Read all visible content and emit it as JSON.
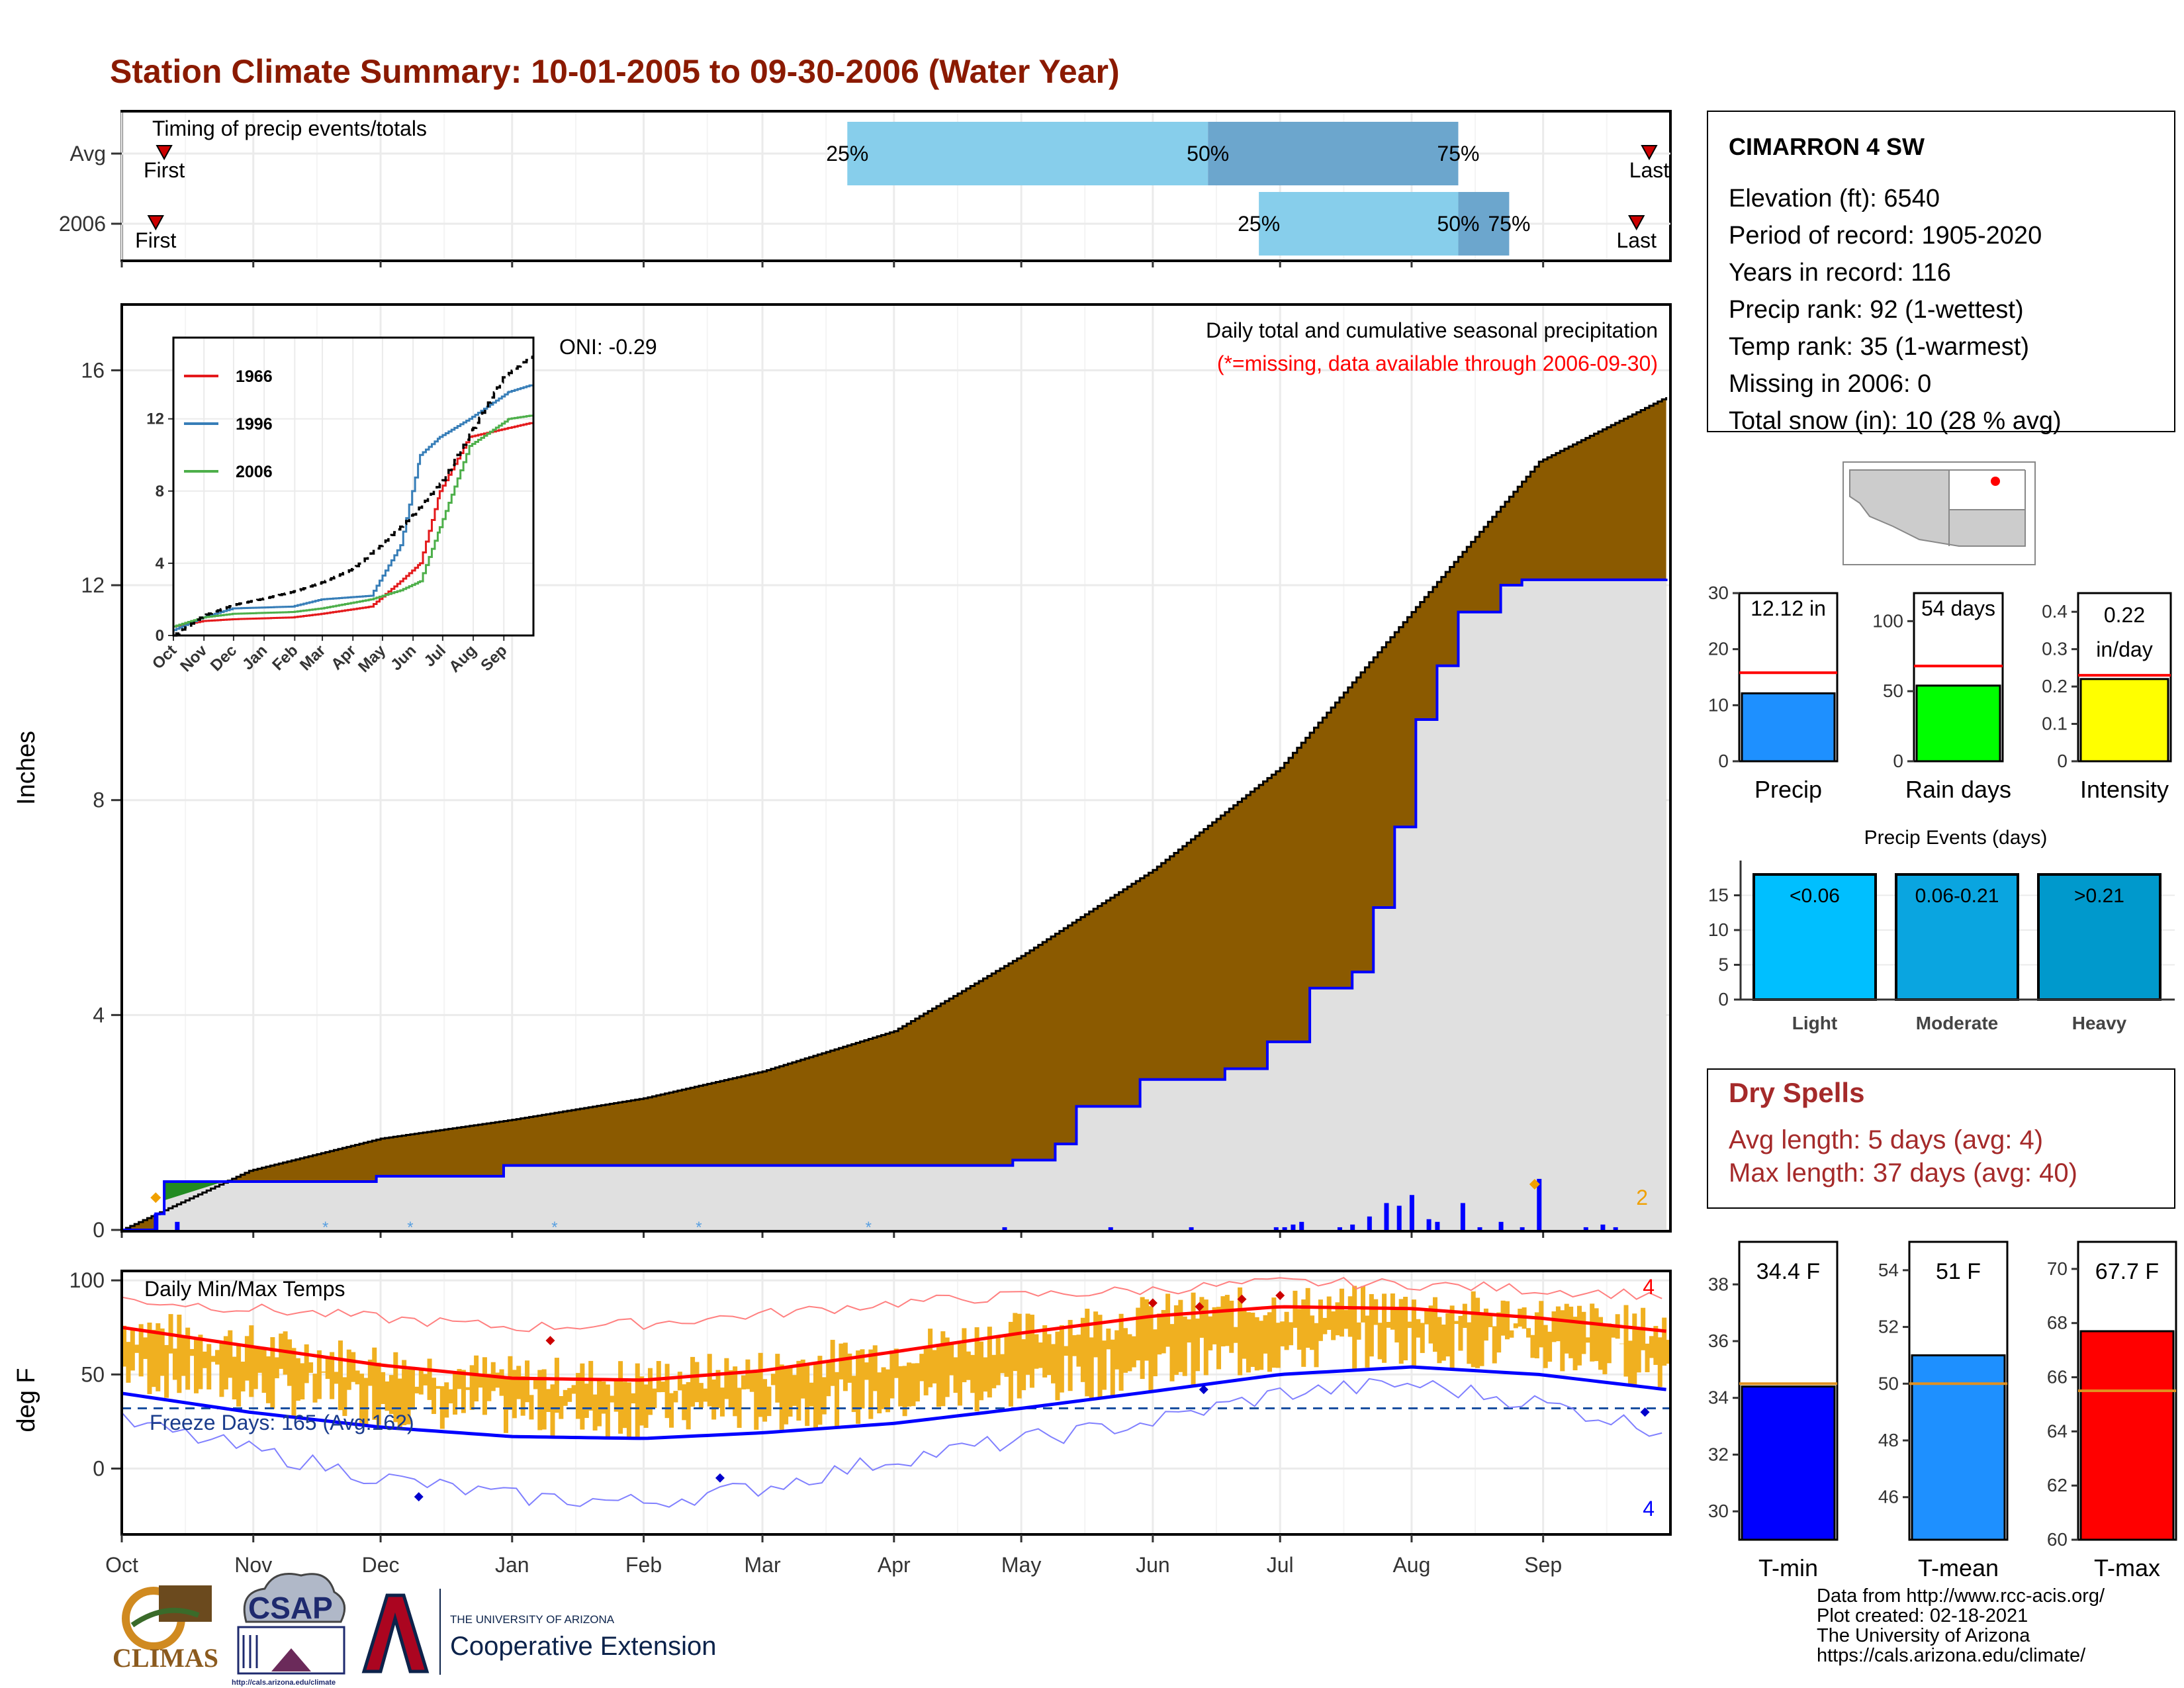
{
  "title": "Station Climate Summary: 10-01-2005 to 09-30-2006 (Water Year)",
  "colors": {
    "title": "#8B1A00",
    "brown": "#8B5A00",
    "gray": "#E0E0E0",
    "blue": "#0000FF",
    "orange": "#F0B020",
    "red": "#FF0000"
  },
  "months": [
    "Oct",
    "Nov",
    "Dec",
    "Jan",
    "Feb",
    "Mar",
    "Apr",
    "May",
    "Jun",
    "Jul",
    "Aug",
    "Sep"
  ],
  "timing": {
    "label": "Timing of precip events/totals",
    "rows": [
      {
        "name": "Avg",
        "first_label": "First",
        "last_label": "Last",
        "first_day": 10,
        "last_day": 360,
        "p25": 171,
        "p50": 256,
        "p75": 315,
        "l25": "25%",
        "l50": "50%",
        "l75": "75%"
      },
      {
        "name": "2006",
        "first_label": "First",
        "last_label": "Last",
        "first_day": 8,
        "last_day": 357,
        "p25": 268,
        "p50": 315,
        "p75": 327,
        "l25": "25%",
        "l50": "50%",
        "l75": "75%"
      }
    ]
  },
  "station": {
    "name": "CIMARRON 4 SW",
    "lines": [
      "Elevation (ft): 6540",
      "Period of record: 1905-2020",
      "Years in record: 116",
      "Precip rank: 92 (1-wettest)",
      "Temp rank: 35 (1-warmest)",
      "Missing in 2006: 0",
      "Total snow (in): 10 (28 % avg)"
    ]
  },
  "precip_chart": {
    "ylabel": "Inches",
    "yticks": [
      0,
      4,
      8,
      12,
      16
    ],
    "title": "Daily total and cumulative seasonal precipitation",
    "subtitle": "(*=missing, data available through 2006-09-30)",
    "oni": "ONI: -0.29",
    "count_label": "2"
  },
  "chart_data": [
    {
      "type": "area",
      "name": "cumulative precipitation",
      "x_unit": "day of water year",
      "avg_cumulative": [
        [
          0,
          0
        ],
        [
          30,
          1.1
        ],
        [
          61,
          1.7
        ],
        [
          92,
          2.05
        ],
        [
          123,
          2.45
        ],
        [
          151,
          2.95
        ],
        [
          182,
          3.7
        ],
        [
          212,
          5.1
        ],
        [
          243,
          6.7
        ],
        [
          273,
          8.6
        ],
        [
          304,
          11.5
        ],
        [
          334,
          14.3
        ],
        [
          364,
          15.5
        ]
      ],
      "cumulative_2006": [
        [
          0,
          0
        ],
        [
          8,
          0.3
        ],
        [
          10,
          0.9
        ],
        [
          30,
          0.9
        ],
        [
          60,
          1.0
        ],
        [
          90,
          1.2
        ],
        [
          150,
          1.2
        ],
        [
          180,
          1.2
        ],
        [
          210,
          1.3
        ],
        [
          220,
          1.6
        ],
        [
          225,
          2.3
        ],
        [
          240,
          2.8
        ],
        [
          260,
          3.0
        ],
        [
          270,
          3.5
        ],
        [
          280,
          4.5
        ],
        [
          290,
          4.8
        ],
        [
          295,
          6.0
        ],
        [
          300,
          7.5
        ],
        [
          305,
          9.5
        ],
        [
          310,
          10.5
        ],
        [
          315,
          11.5
        ],
        [
          325,
          12.0
        ],
        [
          330,
          12.1
        ],
        [
          364,
          12.12
        ]
      ],
      "daily_bars": [
        [
          8,
          0.3
        ],
        [
          13,
          0.15
        ],
        [
          208,
          0.05
        ],
        [
          233,
          0.05
        ],
        [
          252,
          0.05
        ],
        [
          272,
          0.05
        ],
        [
          274,
          0.05
        ],
        [
          276,
          0.1
        ],
        [
          278,
          0.15
        ],
        [
          287,
          0.05
        ],
        [
          290,
          0.1
        ],
        [
          294,
          0.25
        ],
        [
          298,
          0.5
        ],
        [
          301,
          0.45
        ],
        [
          304,
          0.65
        ],
        [
          308,
          0.2
        ],
        [
          310,
          0.15
        ],
        [
          316,
          0.5
        ],
        [
          320,
          0.05
        ],
        [
          325,
          0.15
        ],
        [
          330,
          0.05
        ],
        [
          334,
          0.95
        ],
        [
          345,
          0.05
        ],
        [
          349,
          0.1
        ],
        [
          352,
          0.05
        ]
      ]
    },
    {
      "type": "line",
      "name": "inset cumulative comparison",
      "yticks": [
        0,
        4,
        8,
        12
      ],
      "series": [
        {
          "name": "1966",
          "color": "#E41A1C",
          "points": [
            [
              0,
              0.5
            ],
            [
              30,
              0.8
            ],
            [
              60,
              0.9
            ],
            [
              120,
              1.0
            ],
            [
              150,
              1.2
            ],
            [
              200,
              1.6
            ],
            [
              230,
              3.0
            ],
            [
              250,
              4.0
            ],
            [
              270,
              8.0
            ],
            [
              300,
              11.0
            ],
            [
              340,
              11.5
            ],
            [
              364,
              11.8
            ]
          ]
        },
        {
          "name": "1996",
          "color": "#377EB8",
          "points": [
            [
              0,
              0.3
            ],
            [
              30,
              1.0
            ],
            [
              60,
              1.5
            ],
            [
              120,
              1.6
            ],
            [
              150,
              2.0
            ],
            [
              200,
              2.2
            ],
            [
              230,
              5.0
            ],
            [
              250,
              10.0
            ],
            [
              270,
              11.0
            ],
            [
              300,
              12.0
            ],
            [
              340,
              13.5
            ],
            [
              364,
              13.9
            ]
          ]
        },
        {
          "name": "2006",
          "color": "#4DAF4A",
          "points": [
            [
              0,
              0.5
            ],
            [
              30,
              1.0
            ],
            [
              60,
              1.2
            ],
            [
              120,
              1.3
            ],
            [
              150,
              1.5
            ],
            [
              200,
              2.0
            ],
            [
              230,
              2.5
            ],
            [
              250,
              3.0
            ],
            [
              270,
              6.0
            ],
            [
              300,
              10.5
            ],
            [
              340,
              12.0
            ],
            [
              364,
              12.2
            ]
          ]
        },
        {
          "name": "avg",
          "color": "#000000",
          "points": [
            [
              0,
              0
            ],
            [
              30,
              1.1
            ],
            [
              61,
              1.7
            ],
            [
              92,
              2.05
            ],
            [
              123,
              2.45
            ],
            [
              151,
              2.95
            ],
            [
              182,
              3.7
            ],
            [
              212,
              5.1
            ],
            [
              243,
              6.7
            ],
            [
              273,
              8.6
            ],
            [
              304,
              11.5
            ],
            [
              334,
              14.3
            ],
            [
              364,
              15.5
            ]
          ]
        }
      ]
    },
    {
      "type": "bar",
      "name": "Precip",
      "value": 12.12,
      "avg": 15.8,
      "label": "12.12 in",
      "yticks": [
        0,
        10,
        20,
        30
      ],
      "ylim": [
        0,
        30
      ],
      "color": "#1E90FF"
    },
    {
      "type": "bar",
      "name": "Rain days",
      "value": 54,
      "avg": 68,
      "label": "54 days",
      "yticks": [
        0,
        50,
        100
      ],
      "ylim": [
        0,
        120
      ],
      "color": "#00FF00"
    },
    {
      "type": "bar",
      "name": "Intensity",
      "value": 0.22,
      "avg": 0.23,
      "label_line1": "0.22",
      "label_line2": "in/day",
      "yticks": [
        0.0,
        0.1,
        0.2,
        0.3,
        0.4
      ],
      "ylim": [
        0,
        0.45
      ],
      "color": "#FFFF00"
    },
    {
      "type": "bar",
      "name": "Precip Events (days)",
      "categories": [
        "Light",
        "Moderate",
        "Heavy"
      ],
      "labels": [
        "<0.06",
        "0.06-0.21",
        ">0.21"
      ],
      "values": [
        18,
        18,
        18
      ],
      "colors": [
        "#00BFFF",
        "#0AA5E0",
        "#0099CC"
      ],
      "yticks": [
        0,
        5,
        10,
        15
      ],
      "ylim": [
        0,
        20
      ]
    },
    {
      "type": "line",
      "name": "Daily Min/Max Temps",
      "ylabel": "deg F",
      "yticks": [
        0,
        50,
        100
      ],
      "ylim": [
        -35,
        105
      ],
      "freeze_label": "Freeze Days: 165 (Avg:162)",
      "freeze_line": 32,
      "count_high": "4",
      "count_low": "4",
      "avg_max": [
        [
          0,
          75
        ],
        [
          30,
          65
        ],
        [
          61,
          55
        ],
        [
          92,
          48
        ],
        [
          123,
          47
        ],
        [
          151,
          52
        ],
        [
          182,
          62
        ],
        [
          212,
          72
        ],
        [
          243,
          81
        ],
        [
          273,
          86
        ],
        [
          304,
          85
        ],
        [
          334,
          80
        ],
        [
          364,
          73
        ]
      ],
      "avg_min": [
        [
          0,
          40
        ],
        [
          30,
          30
        ],
        [
          61,
          22
        ],
        [
          92,
          17
        ],
        [
          123,
          16
        ],
        [
          151,
          19
        ],
        [
          182,
          24
        ],
        [
          212,
          32
        ],
        [
          243,
          41
        ],
        [
          273,
          50
        ],
        [
          304,
          54
        ],
        [
          334,
          50
        ],
        [
          364,
          42
        ]
      ],
      "record_max": [
        [
          0,
          90
        ],
        [
          30,
          85
        ],
        [
          61,
          80
        ],
        [
          92,
          75
        ],
        [
          123,
          77
        ],
        [
          151,
          82
        ],
        [
          182,
          88
        ],
        [
          212,
          92
        ],
        [
          243,
          95
        ],
        [
          273,
          99
        ],
        [
          304,
          98
        ],
        [
          334,
          95
        ],
        [
          364,
          92
        ]
      ],
      "record_min": [
        [
          0,
          25
        ],
        [
          30,
          10
        ],
        [
          61,
          -5
        ],
        [
          92,
          -15
        ],
        [
          123,
          -18
        ],
        [
          151,
          -10
        ],
        [
          182,
          5
        ],
        [
          212,
          15
        ],
        [
          243,
          25
        ],
        [
          273,
          40
        ],
        [
          304,
          45
        ],
        [
          334,
          35
        ],
        [
          364,
          20
        ]
      ]
    },
    {
      "type": "bar",
      "name": "T-min",
      "value": 34.4,
      "avg": 34.5,
      "label": "34.4 F",
      "yticks": [
        30,
        32,
        34,
        36,
        38
      ],
      "ylim": [
        29,
        39.5
      ],
      "color": "#0000FF"
    },
    {
      "type": "bar",
      "name": "T-mean",
      "value": 51,
      "avg": 50,
      "label": "51 F",
      "yticks": [
        46,
        48,
        50,
        52,
        54
      ],
      "ylim": [
        44.5,
        55
      ],
      "color": "#1E90FF"
    },
    {
      "type": "bar",
      "name": "T-max",
      "value": 67.7,
      "avg": 65.5,
      "label": "67.7 F",
      "yticks": [
        60,
        62,
        64,
        66,
        68,
        70
      ],
      "ylim": [
        60,
        71
      ],
      "color": "#FF0000"
    }
  ],
  "dry_spells": {
    "title": "Dry Spells",
    "avg_length": "Avg length: 5 days (avg: 4)",
    "max_length": "Max length: 37 days (avg: 40)"
  },
  "footer": {
    "lines": [
      "Data from http://www.rcc-acis.org/",
      "Plot created: 02-18-2021",
      "The University of Arizona",
      "https://cals.arizona.edu/climate/"
    ],
    "logo_climas": "CLIMAS",
    "logo_csap": "CSAP",
    "logo_csap_url": "http://cals.arizona.edu/climate",
    "ua_line1": "THE UNIVERSITY OF ARIZONA",
    "ua_line2": "Cooperative Extension"
  }
}
